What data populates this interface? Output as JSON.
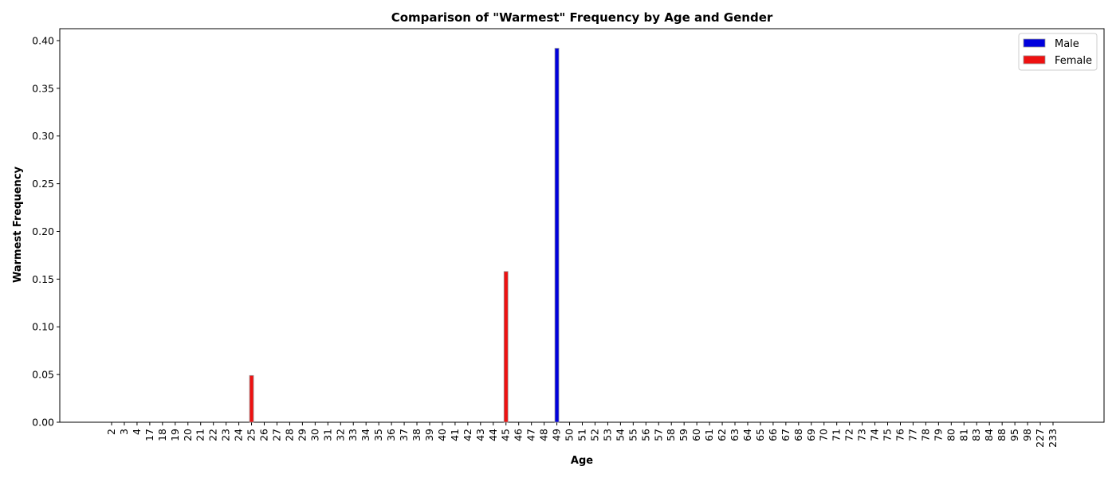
{
  "chart_data": {
    "type": "bar",
    "title": "Comparison of \"Warmest\" Frequency by Age and Gender",
    "xlabel": "Age",
    "ylabel": "Warmest Frequency",
    "ylim": [
      0,
      0.4125
    ],
    "yticks": [
      0.0,
      0.05,
      0.1,
      0.15,
      0.2,
      0.25,
      0.3,
      0.35,
      0.4
    ],
    "ytick_labels": [
      "0.00",
      "0.05",
      "0.10",
      "0.15",
      "0.20",
      "0.25",
      "0.30",
      "0.35",
      "0.40"
    ],
    "categories": [
      "2",
      "3",
      "4",
      "17",
      "18",
      "19",
      "20",
      "21",
      "22",
      "23",
      "24",
      "25",
      "26",
      "27",
      "28",
      "29",
      "30",
      "31",
      "32",
      "33",
      "34",
      "35",
      "36",
      "37",
      "38",
      "39",
      "40",
      "41",
      "42",
      "43",
      "44",
      "45",
      "46",
      "47",
      "48",
      "49",
      "50",
      "51",
      "52",
      "53",
      "54",
      "55",
      "56",
      "57",
      "58",
      "59",
      "60",
      "61",
      "62",
      "63",
      "64",
      "65",
      "66",
      "67",
      "68",
      "69",
      "70",
      "71",
      "72",
      "73",
      "74",
      "75",
      "76",
      "77",
      "78",
      "79",
      "80",
      "81",
      "83",
      "84",
      "88",
      "95",
      "98",
      "227",
      "233"
    ],
    "series": [
      {
        "name": "Male",
        "color": "#0000dd",
        "values": [
          0,
          0,
          0,
          0,
          0,
          0,
          0,
          0,
          0,
          0,
          0,
          0,
          0,
          0,
          0,
          0,
          0,
          0,
          0,
          0,
          0,
          0,
          0,
          0,
          0,
          0,
          0,
          0,
          0,
          0,
          0,
          0,
          0,
          0,
          0,
          0.392,
          0,
          0,
          0,
          0,
          0,
          0,
          0,
          0,
          0,
          0,
          0,
          0,
          0,
          0,
          0,
          0,
          0,
          0,
          0,
          0,
          0,
          0,
          0,
          0,
          0,
          0,
          0,
          0,
          0,
          0,
          0,
          0,
          0,
          0,
          0,
          0,
          0,
          0,
          0
        ]
      },
      {
        "name": "Female",
        "color": "#ee1111",
        "values": [
          0,
          0,
          0,
          0,
          0,
          0,
          0,
          0,
          0,
          0,
          0,
          0.049,
          0,
          0,
          0,
          0,
          0,
          0,
          0,
          0,
          0,
          0,
          0,
          0,
          0,
          0,
          0,
          0,
          0,
          0,
          0,
          0.158,
          0,
          0,
          0,
          0,
          0,
          0,
          0,
          0,
          0,
          0,
          0,
          0,
          0,
          0,
          0,
          0,
          0,
          0,
          0,
          0,
          0,
          0,
          0,
          0,
          0,
          0,
          0,
          0,
          0,
          0,
          0,
          0,
          0,
          0,
          0,
          0,
          0,
          0,
          0,
          0,
          0,
          0,
          0
        ]
      }
    ],
    "grid": false,
    "legend_position": "top-right"
  }
}
